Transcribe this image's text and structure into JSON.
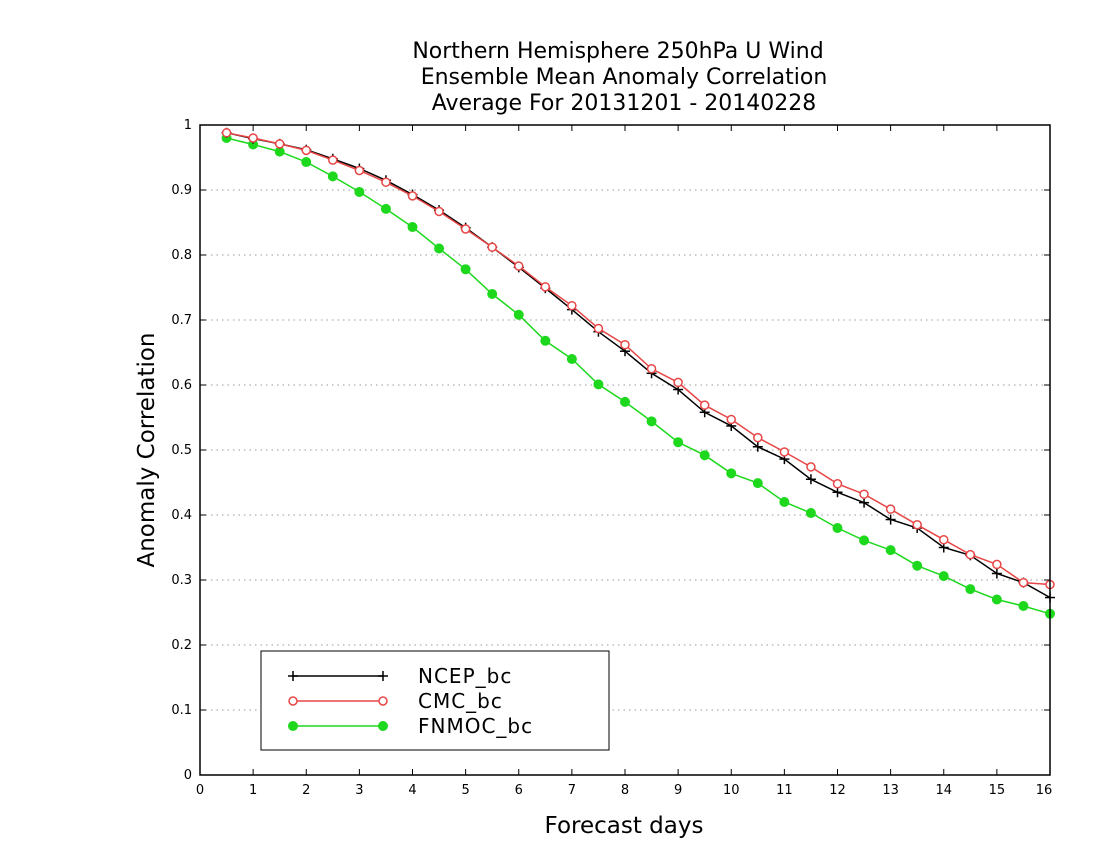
{
  "chart_data": {
    "type": "line",
    "title": [
      "Northern Hemisphere 250hPa U Wind",
      "Ensemble Mean Anomaly Correlation",
      "Average For 20131201 - 20140228"
    ],
    "xlabel": "Forecast days",
    "ylabel": "Anomaly Correlation",
    "xlim": [
      0,
      16
    ],
    "ylim": [
      0,
      1
    ],
    "x_ticks": [
      "0",
      "1",
      "2",
      "3",
      "4",
      "5",
      "6",
      "7",
      "8",
      "9",
      "10",
      "11",
      "12",
      "13",
      "14",
      "15",
      "16"
    ],
    "y_ticks": [
      "0",
      "0.1",
      "0.2",
      "0.3",
      "0.4",
      "0.5",
      "0.6",
      "0.7",
      "0.8",
      "0.9",
      "1"
    ],
    "grid": "horizontal-dotted",
    "legend_position": "bottom-left",
    "x": [
      0.5,
      1,
      1.5,
      2,
      2.5,
      3,
      3.5,
      4,
      4.5,
      5,
      5.5,
      6,
      6.5,
      7,
      7.5,
      8,
      8.5,
      9,
      9.5,
      10,
      10.5,
      11,
      11.5,
      12,
      12.5,
      13,
      13.5,
      14,
      14.5,
      15,
      15.5,
      16
    ],
    "series": [
      {
        "name": "NCEP_bc",
        "color": "#000000",
        "marker": "plus",
        "values": [
          0.988,
          0.979,
          0.971,
          0.962,
          0.948,
          0.933,
          0.915,
          0.893,
          0.869,
          0.842,
          0.812,
          0.781,
          0.749,
          0.716,
          0.682,
          0.652,
          0.618,
          0.593,
          0.558,
          0.537,
          0.505,
          0.486,
          0.455,
          0.435,
          0.419,
          0.393,
          0.38,
          0.35,
          0.338,
          0.31,
          0.296,
          0.273
        ]
      },
      {
        "name": "CMC_bc",
        "color": "#e84646",
        "marker": "open-circle",
        "values": [
          0.988,
          0.98,
          0.971,
          0.961,
          0.946,
          0.93,
          0.912,
          0.891,
          0.867,
          0.84,
          0.812,
          0.783,
          0.751,
          0.722,
          0.687,
          0.662,
          0.625,
          0.604,
          0.569,
          0.547,
          0.519,
          0.497,
          0.474,
          0.448,
          0.432,
          0.409,
          0.385,
          0.362,
          0.339,
          0.324,
          0.296,
          0.293
        ]
      },
      {
        "name": "FNMOC_bc",
        "color": "#1ed81e",
        "marker": "filled-circle",
        "values": [
          0.98,
          0.97,
          0.959,
          0.943,
          0.921,
          0.897,
          0.871,
          0.843,
          0.81,
          0.778,
          0.74,
          0.708,
          0.668,
          0.64,
          0.601,
          0.574,
          0.544,
          0.512,
          0.492,
          0.464,
          0.449,
          0.42,
          0.403,
          0.38,
          0.361,
          0.346,
          0.322,
          0.306,
          0.286,
          0.27,
          0.26,
          0.248
        ]
      }
    ]
  }
}
